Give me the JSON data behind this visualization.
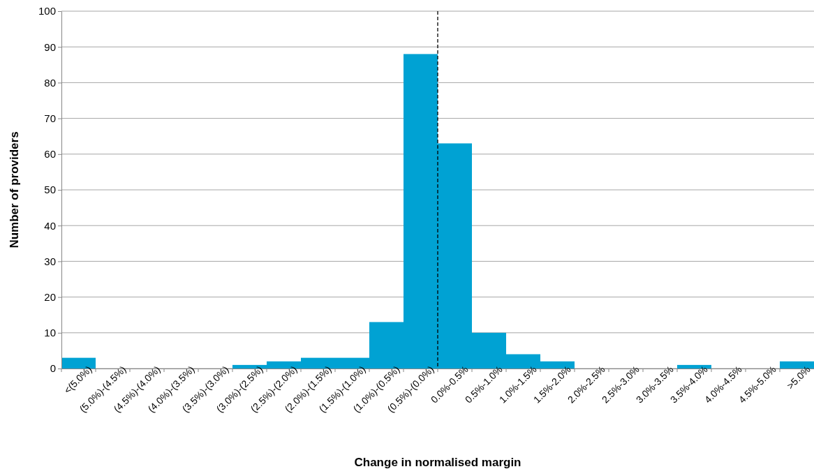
{
  "chart_data": {
    "type": "bar",
    "xlabel": "Change in normalised margin",
    "ylabel": "Number of providers",
    "categories": [
      "<(5.0%)",
      "(5.0%)-(4.5%)",
      "(4.5%)-(4.0%)",
      "(4.0%)-(3.5%)",
      "(3.5%)-(3.0%)",
      "(3.0%)-(2.5%)",
      "(2.5%)-(2.0%)",
      "(2.0%)-(1.5%)",
      "(1.5%)-(1.0%)",
      "(1.0%)-(0.5%)",
      "(0.5%)-(0.0%)",
      "0.0%-0.5%",
      "0.5%-1.0%",
      "1.0%-1.5%",
      "1.5%-2.0%",
      "2.0%-2.5%",
      "2.5%-3.0%",
      "3.0%-3.5%",
      "3.5%-4.0%",
      "4.0%-4.5%",
      "4.5%-5.0%",
      ">5.0%"
    ],
    "values": [
      3,
      0,
      0,
      0,
      0,
      1,
      2,
      3,
      3,
      13,
      88,
      63,
      10,
      4,
      2,
      0,
      0,
      0,
      1,
      0,
      0,
      2
    ],
    "color": "#00a2d3",
    "ylim": [
      0,
      100
    ],
    "yticks": [
      0,
      10,
      20,
      30,
      40,
      50,
      60,
      70,
      80,
      90,
      100
    ],
    "grid": "y",
    "ref_lines": [
      {
        "axis": "x",
        "value": "0.0%-0.5%",
        "line_style": "dashed",
        "color": "#000000"
      }
    ]
  }
}
